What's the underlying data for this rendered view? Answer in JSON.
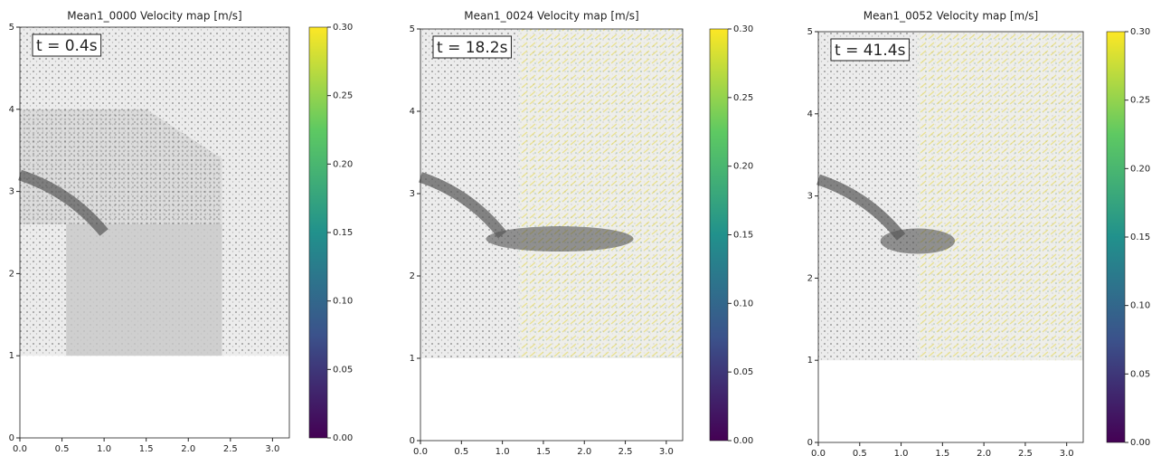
{
  "chart_data": [
    {
      "type": "image",
      "title": "Mean1_0000   Velocity map  [m/s]",
      "annotation": "t = 0.4s",
      "colormap": "viridis",
      "xlim": [
        0,
        3.2
      ],
      "ylim": [
        0,
        5
      ],
      "xticks": [
        {
          "value": 0,
          "label": "0.0"
        },
        0.5,
        {
          "value": 1,
          "label": "1.0"
        },
        1.5,
        {
          "value": 2,
          "label": "2.0"
        },
        2.5,
        {
          "value": 3,
          "label": "3.0"
        }
      ],
      "yticks": [
        0,
        1,
        2,
        3,
        4,
        5
      ],
      "clim": [
        0,
        0.3
      ],
      "cticks": [
        {
          "value": 0,
          "label": "0.00"
        },
        0.05,
        {
          "value": 0.1,
          "label": "0.10"
        },
        0.15,
        {
          "value": 0.2,
          "label": "0.20"
        },
        0.25,
        {
          "value": 0.3,
          "label": "0.30"
        }
      ]
    },
    {
      "type": "image",
      "title": "Mean1_0024   Velocity map  [m/s]",
      "annotation": "t = 18.2s",
      "colormap": "viridis",
      "xlim": [
        0,
        3.2
      ],
      "ylim": [
        0,
        5
      ],
      "xticks": [
        {
          "value": 0,
          "label": "0.0"
        },
        0.5,
        {
          "value": 1,
          "label": "1.0"
        },
        1.5,
        {
          "value": 2,
          "label": "2.0"
        },
        2.5,
        {
          "value": 3,
          "label": "3.0"
        }
      ],
      "yticks": [
        0,
        1,
        2,
        3,
        4,
        5
      ],
      "clim": [
        0,
        0.3
      ],
      "cticks": [
        {
          "value": 0,
          "label": "0.00"
        },
        0.05,
        {
          "value": 0.1,
          "label": "0.10"
        },
        0.15,
        {
          "value": 0.2,
          "label": "0.20"
        },
        0.25,
        {
          "value": 0.3,
          "label": "0.30"
        }
      ]
    },
    {
      "type": "image",
      "title": "Mean1_0052   Velocity map  [m/s]",
      "annotation": "t = 41.4s",
      "colormap": "viridis",
      "xlim": [
        0,
        3.2
      ],
      "ylim": [
        0,
        5
      ],
      "xticks": [
        {
          "value": 0,
          "label": "0.0"
        },
        0.5,
        {
          "value": 1,
          "label": "1.0"
        },
        1.5,
        {
          "value": 2,
          "label": "2.0"
        },
        2.5,
        {
          "value": 3,
          "label": "3.0"
        }
      ],
      "yticks": [
        0,
        1,
        2,
        3,
        4,
        5
      ],
      "clim": [
        0,
        0.3
      ],
      "cticks": [
        {
          "value": 0,
          "label": "0.00"
        },
        0.05,
        {
          "value": 0.1,
          "label": "0.10"
        },
        0.15,
        {
          "value": 0.2,
          "label": "0.20"
        },
        0.25,
        {
          "value": 0.3,
          "label": "0.30"
        }
      ]
    }
  ]
}
